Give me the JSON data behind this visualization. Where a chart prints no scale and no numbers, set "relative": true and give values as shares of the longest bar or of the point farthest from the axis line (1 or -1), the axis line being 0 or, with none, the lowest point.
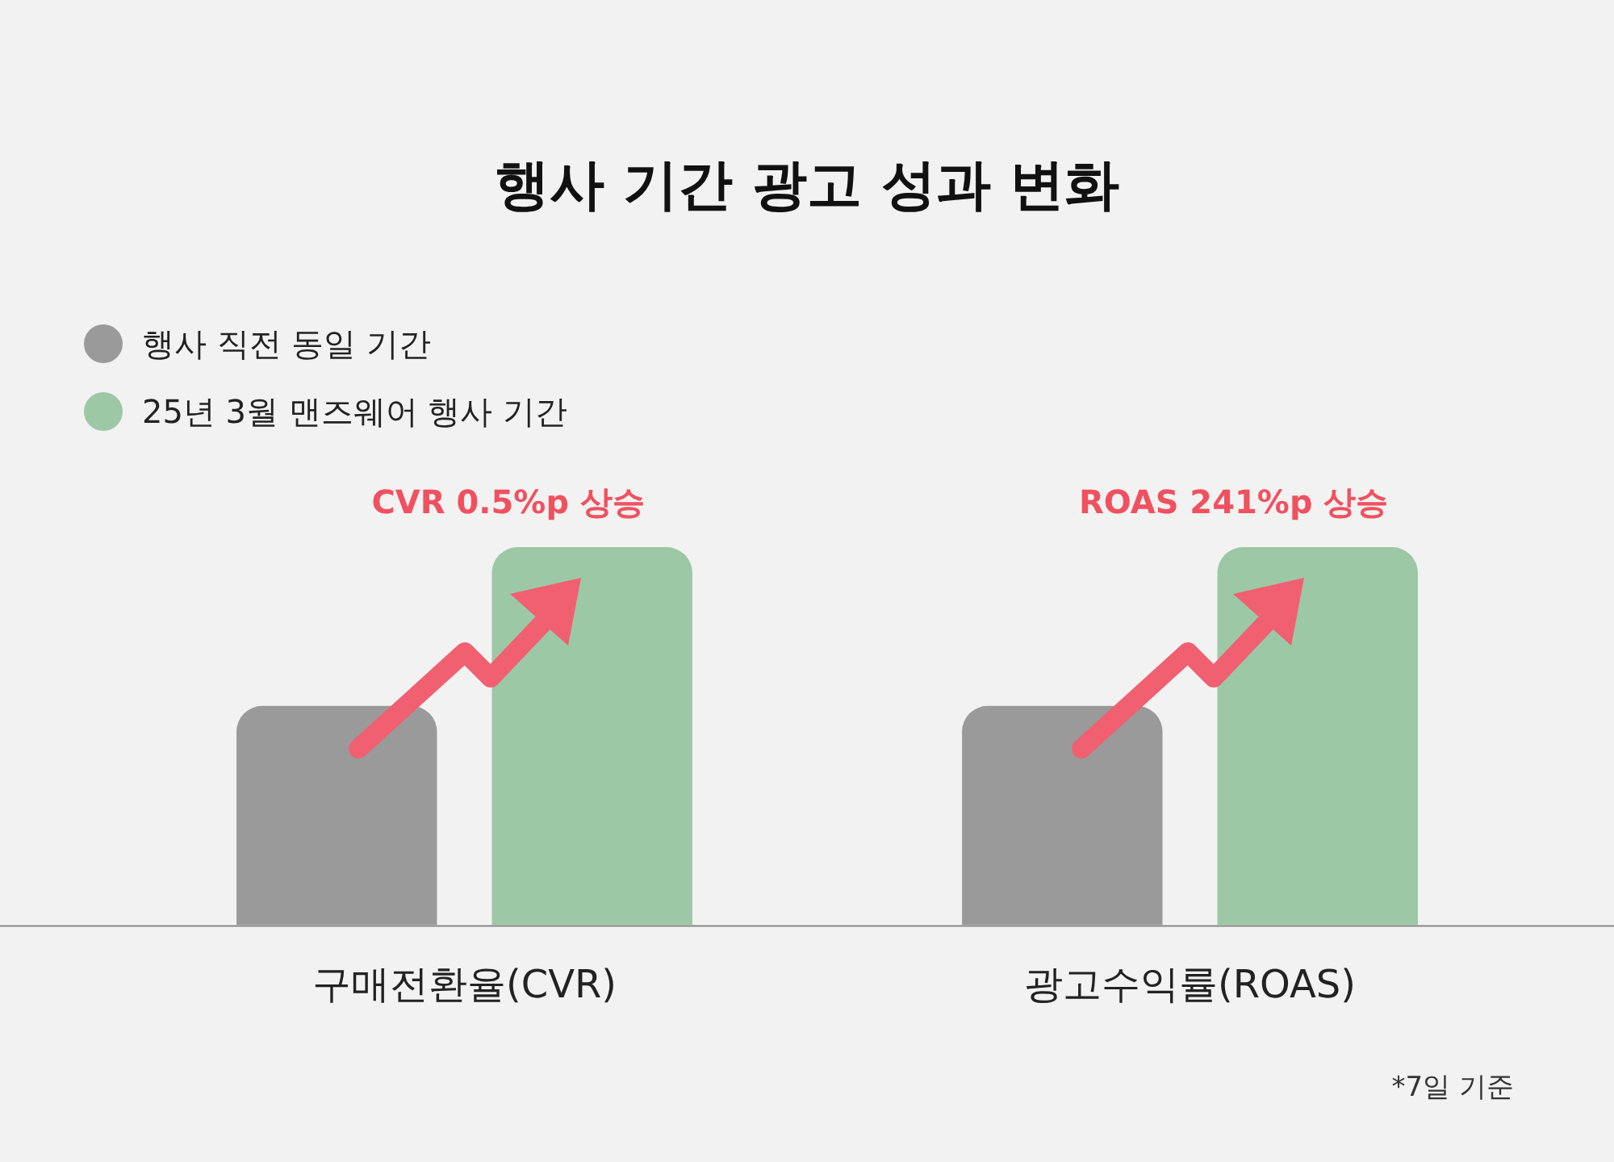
{
  "chart_data": {
    "type": "bar",
    "title": "행사 기간 광고 성과 변화",
    "categories": [
      "구매전환율(CVR)",
      "광고수익률(ROAS)"
    ],
    "relative": true,
    "legend": "top left",
    "series": [
      {
        "name": "행사 직전 동일 기간",
        "color": "#9a9a9a",
        "values": [
          0.58,
          0.58
        ]
      },
      {
        "name": "25년 3월 맨즈웨어 행사 기간",
        "color": "#9dc8a5",
        "values": [
          1,
          1
        ]
      }
    ],
    "annotations": [
      "CVR 0.5%p 상승",
      "ROAS 241%p 상승",
      "*7일 기준"
    ]
  }
}
